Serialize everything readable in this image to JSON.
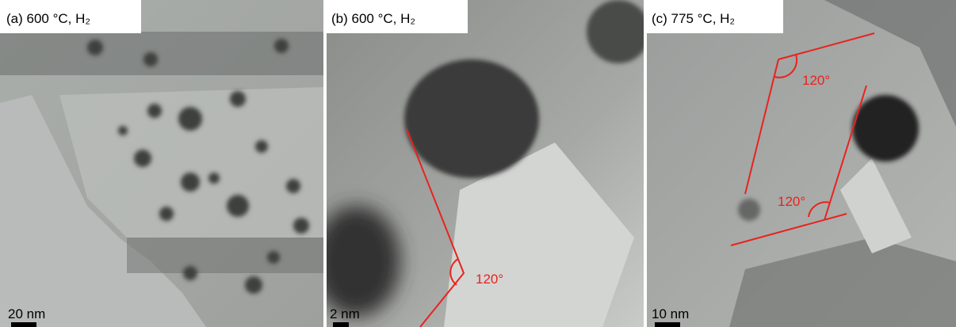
{
  "panels": [
    {
      "label": "(a) 600 °C, H₂",
      "scale_bar": "20 nm"
    },
    {
      "label": "(b) 600 °C, H₂",
      "scale_bar": "2 nm",
      "angles": [
        "120°"
      ]
    },
    {
      "label": "(c) 775 °C, H₂",
      "scale_bar": "10 nm",
      "angles": [
        "120°",
        "120°"
      ]
    }
  ]
}
